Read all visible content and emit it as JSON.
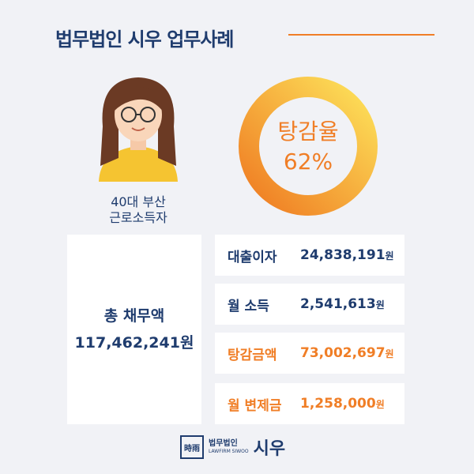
{
  "header": {
    "title": "법무법인 시우 업무사례"
  },
  "profile": {
    "line1": "40대 부산",
    "line2": "근로소득자"
  },
  "rate": {
    "label": "탕감율",
    "value": "62%"
  },
  "total": {
    "label": "총 채무액",
    "value": "117,462,241원"
  },
  "rows": [
    {
      "label": "대출이자",
      "value": "24,838,191",
      "unit": "원"
    },
    {
      "label": "월 소득",
      "value": "2,541,613",
      "unit": "원"
    },
    {
      "label": "탕감금액",
      "value": "73,002,697",
      "unit": "원"
    },
    {
      "label": "월 변제금",
      "value": "1,258,000",
      "unit": "원"
    }
  ],
  "footer": {
    "icon": "時雨",
    "small": "법무법인",
    "english": "LAWFIRM SIWOO",
    "name": "시우"
  }
}
